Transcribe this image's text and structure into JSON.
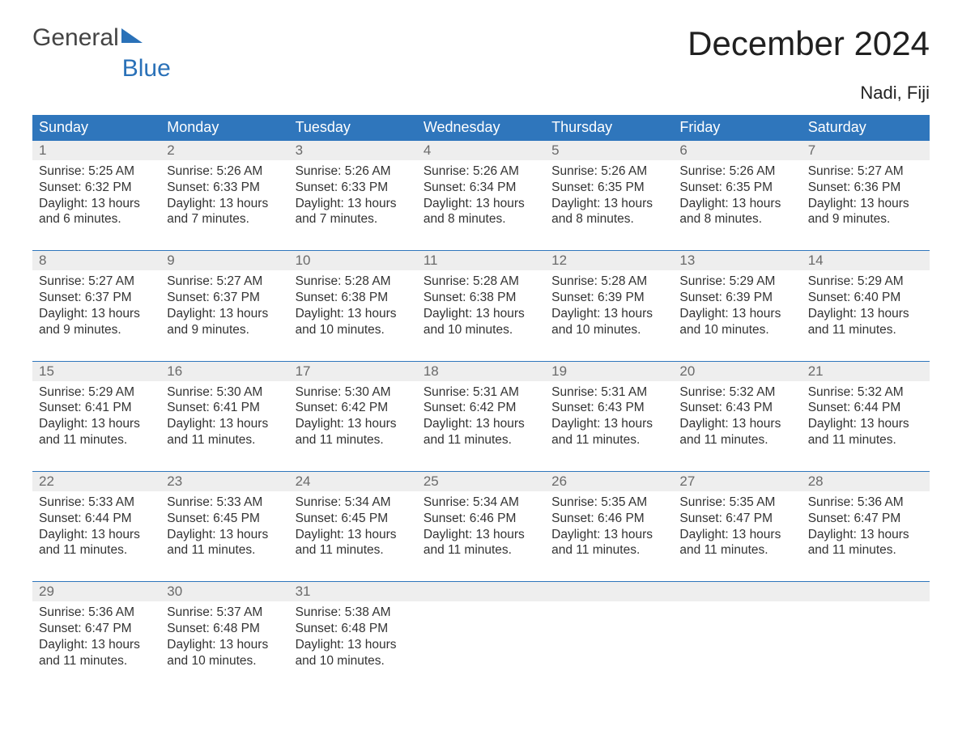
{
  "brand": {
    "part1": "General",
    "part2": "Blue"
  },
  "title": "December 2024",
  "location": "Nadi, Fiji",
  "colors": {
    "header_bg": "#2f76bc",
    "header_text": "#ffffff",
    "daynum_bg": "#eeeeee",
    "daynum_border": "#2f76bc",
    "daynum_text": "#6a6a6a",
    "body_text": "#333333",
    "page_bg": "#ffffff",
    "brand_color": "#2a71b8"
  },
  "typography": {
    "title_fontsize": 42,
    "location_fontsize": 22,
    "header_fontsize": 18,
    "daynum_fontsize": 17,
    "body_fontsize": 15.5,
    "logo_fontsize": 30
  },
  "day_headers": [
    "Sunday",
    "Monday",
    "Tuesday",
    "Wednesday",
    "Thursday",
    "Friday",
    "Saturday"
  ],
  "labels": {
    "sunrise": "Sunrise:",
    "sunset": "Sunset:",
    "daylight": "Daylight:"
  },
  "weeks": [
    [
      {
        "n": "1",
        "sunrise": "5:25 AM",
        "sunset": "6:32 PM",
        "dl": "13 hours and 6 minutes."
      },
      {
        "n": "2",
        "sunrise": "5:26 AM",
        "sunset": "6:33 PM",
        "dl": "13 hours and 7 minutes."
      },
      {
        "n": "3",
        "sunrise": "5:26 AM",
        "sunset": "6:33 PM",
        "dl": "13 hours and 7 minutes."
      },
      {
        "n": "4",
        "sunrise": "5:26 AM",
        "sunset": "6:34 PM",
        "dl": "13 hours and 8 minutes."
      },
      {
        "n": "5",
        "sunrise": "5:26 AM",
        "sunset": "6:35 PM",
        "dl": "13 hours and 8 minutes."
      },
      {
        "n": "6",
        "sunrise": "5:26 AM",
        "sunset": "6:35 PM",
        "dl": "13 hours and 8 minutes."
      },
      {
        "n": "7",
        "sunrise": "5:27 AM",
        "sunset": "6:36 PM",
        "dl": "13 hours and 9 minutes."
      }
    ],
    [
      {
        "n": "8",
        "sunrise": "5:27 AM",
        "sunset": "6:37 PM",
        "dl": "13 hours and 9 minutes."
      },
      {
        "n": "9",
        "sunrise": "5:27 AM",
        "sunset": "6:37 PM",
        "dl": "13 hours and 9 minutes."
      },
      {
        "n": "10",
        "sunrise": "5:28 AM",
        "sunset": "6:38 PM",
        "dl": "13 hours and 10 minutes."
      },
      {
        "n": "11",
        "sunrise": "5:28 AM",
        "sunset": "6:38 PM",
        "dl": "13 hours and 10 minutes."
      },
      {
        "n": "12",
        "sunrise": "5:28 AM",
        "sunset": "6:39 PM",
        "dl": "13 hours and 10 minutes."
      },
      {
        "n": "13",
        "sunrise": "5:29 AM",
        "sunset": "6:39 PM",
        "dl": "13 hours and 10 minutes."
      },
      {
        "n": "14",
        "sunrise": "5:29 AM",
        "sunset": "6:40 PM",
        "dl": "13 hours and 11 minutes."
      }
    ],
    [
      {
        "n": "15",
        "sunrise": "5:29 AM",
        "sunset": "6:41 PM",
        "dl": "13 hours and 11 minutes."
      },
      {
        "n": "16",
        "sunrise": "5:30 AM",
        "sunset": "6:41 PM",
        "dl": "13 hours and 11 minutes."
      },
      {
        "n": "17",
        "sunrise": "5:30 AM",
        "sunset": "6:42 PM",
        "dl": "13 hours and 11 minutes."
      },
      {
        "n": "18",
        "sunrise": "5:31 AM",
        "sunset": "6:42 PM",
        "dl": "13 hours and 11 minutes."
      },
      {
        "n": "19",
        "sunrise": "5:31 AM",
        "sunset": "6:43 PM",
        "dl": "13 hours and 11 minutes."
      },
      {
        "n": "20",
        "sunrise": "5:32 AM",
        "sunset": "6:43 PM",
        "dl": "13 hours and 11 minutes."
      },
      {
        "n": "21",
        "sunrise": "5:32 AM",
        "sunset": "6:44 PM",
        "dl": "13 hours and 11 minutes."
      }
    ],
    [
      {
        "n": "22",
        "sunrise": "5:33 AM",
        "sunset": "6:44 PM",
        "dl": "13 hours and 11 minutes."
      },
      {
        "n": "23",
        "sunrise": "5:33 AM",
        "sunset": "6:45 PM",
        "dl": "13 hours and 11 minutes."
      },
      {
        "n": "24",
        "sunrise": "5:34 AM",
        "sunset": "6:45 PM",
        "dl": "13 hours and 11 minutes."
      },
      {
        "n": "25",
        "sunrise": "5:34 AM",
        "sunset": "6:46 PM",
        "dl": "13 hours and 11 minutes."
      },
      {
        "n": "26",
        "sunrise": "5:35 AM",
        "sunset": "6:46 PM",
        "dl": "13 hours and 11 minutes."
      },
      {
        "n": "27",
        "sunrise": "5:35 AM",
        "sunset": "6:47 PM",
        "dl": "13 hours and 11 minutes."
      },
      {
        "n": "28",
        "sunrise": "5:36 AM",
        "sunset": "6:47 PM",
        "dl": "13 hours and 11 minutes."
      }
    ],
    [
      {
        "n": "29",
        "sunrise": "5:36 AM",
        "sunset": "6:47 PM",
        "dl": "13 hours and 11 minutes."
      },
      {
        "n": "30",
        "sunrise": "5:37 AM",
        "sunset": "6:48 PM",
        "dl": "13 hours and 10 minutes."
      },
      {
        "n": "31",
        "sunrise": "5:38 AM",
        "sunset": "6:48 PM",
        "dl": "13 hours and 10 minutes."
      },
      null,
      null,
      null,
      null
    ]
  ]
}
